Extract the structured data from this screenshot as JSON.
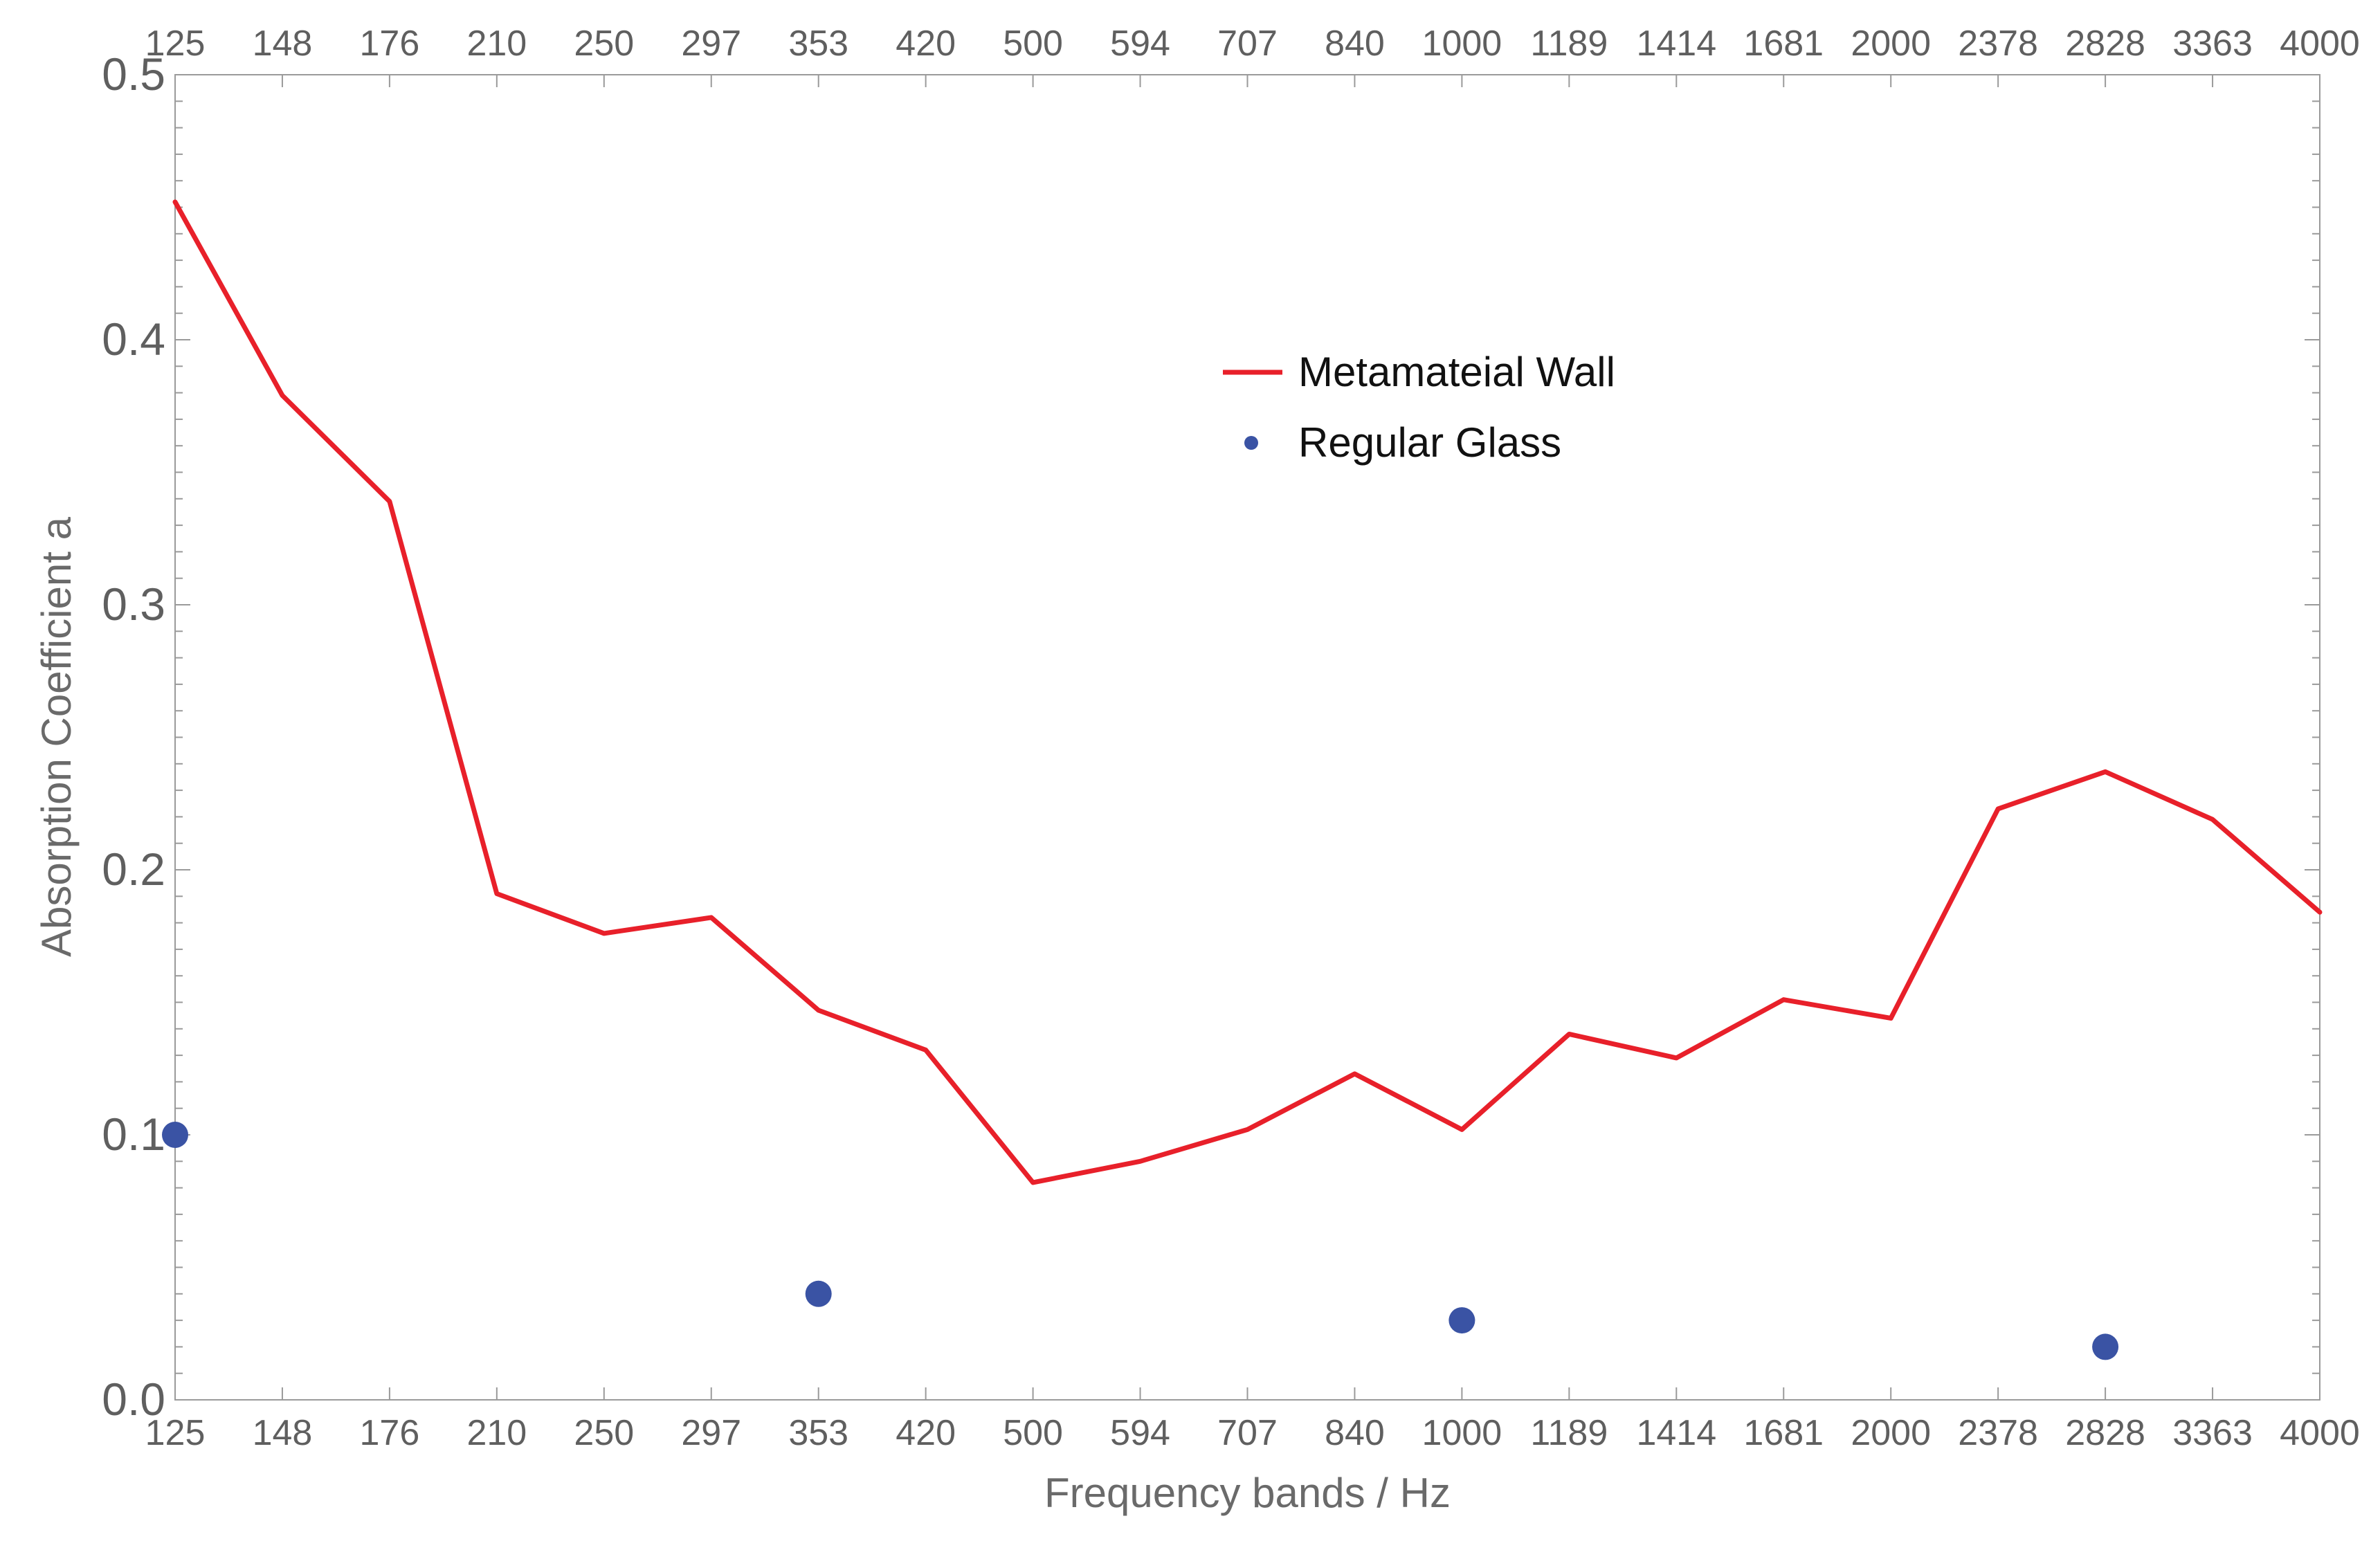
{
  "chart_data": {
    "type": "line",
    "xlabel": "Frequency bands / Hz",
    "ylabel": "Absorption Coefficient a",
    "categories": [
      "125",
      "148",
      "176",
      "210",
      "250",
      "297",
      "353",
      "420",
      "500",
      "594",
      "707",
      "840",
      "1000",
      "1189",
      "1414",
      "1681",
      "2000",
      "2378",
      "2828",
      "3363",
      "4000"
    ],
    "ylim": [
      0,
      0.5
    ],
    "yticks": [
      "0.0",
      "0.1",
      "0.2",
      "0.3",
      "0.4",
      "0.5"
    ],
    "ytick_values": [
      0,
      0.1,
      0.2,
      0.3,
      0.4,
      0.5
    ],
    "grid": false,
    "legend_position": "upper-center",
    "series": [
      {
        "name": "Metamateial Wall",
        "style": "line",
        "color": "#e8202a",
        "x": [
          "125",
          "148",
          "176",
          "210",
          "250",
          "297",
          "353",
          "420",
          "500",
          "594",
          "707",
          "840",
          "1000",
          "1189",
          "1414",
          "1681",
          "2000",
          "2378",
          "2828",
          "3363",
          "4000"
        ],
        "values": [
          0.452,
          0.379,
          0.339,
          0.191,
          0.176,
          0.182,
          0.147,
          0.132,
          0.082,
          0.09,
          0.102,
          0.123,
          0.102,
          0.138,
          0.129,
          0.151,
          0.144,
          0.223,
          0.237,
          0.219,
          0.184
        ]
      },
      {
        "name": "Regular Glass",
        "style": "scatter",
        "color": "#3a53a4",
        "x": [
          "125",
          "353",
          "1000",
          "2828"
        ],
        "values": [
          0.1,
          0.04,
          0.03,
          0.02
        ]
      }
    ]
  }
}
